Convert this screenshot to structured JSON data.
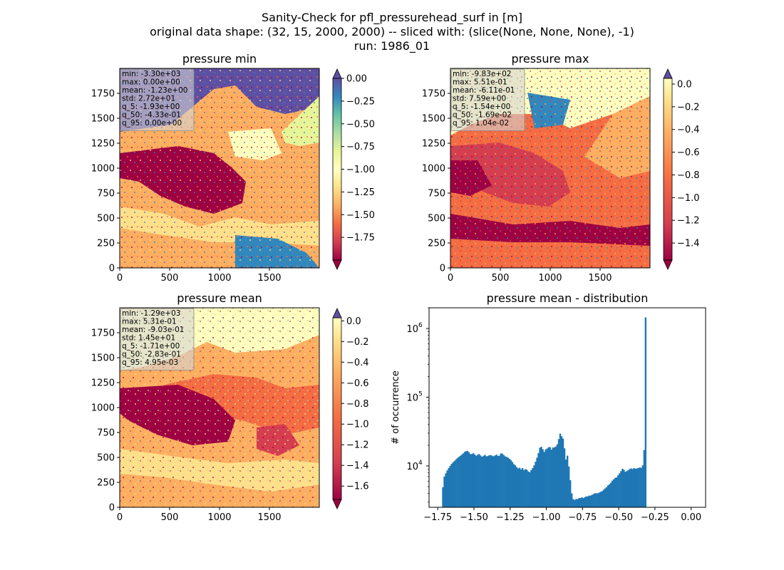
{
  "figure": {
    "title_lines": [
      "Sanity-Check for pfl_pressurehead_surf in [m]",
      "original data shape: (32, 15, 2000, 2000) -- sliced with: (slice(None, None, None), -1)",
      "run: 1986_01"
    ]
  },
  "chart_data": [
    {
      "type": "heatmap",
      "title": "pressure min",
      "xticks": [
        "0",
        "500",
        "1000",
        "1500"
      ],
      "yticks": [
        "0",
        "250",
        "500",
        "750",
        "1000",
        "1250",
        "1500",
        "1750"
      ],
      "xlim": [
        0,
        2000
      ],
      "ylim": [
        0,
        2000
      ],
      "colormap": "Spectral",
      "colorbar": {
        "range": [
          -2.0,
          0.0
        ],
        "ticks": [
          0.0,
          -0.25,
          -0.5,
          -0.75,
          -1.0,
          -1.25,
          -1.5,
          -1.75
        ],
        "tick_labels": [
          "0.00",
          "−0.25",
          "−0.50",
          "−0.75",
          "−1.00",
          "−1.25",
          "−1.50",
          "−1.75"
        ],
        "extend": "both",
        "over_color": "#5e4fa2",
        "under_color": "#9e0142"
      },
      "stats": [
        "min: -3.30e+03",
        "max: 0.00e+00",
        "mean: -1.23e+00",
        "std: 2.72e+01",
        "q_5: -1.93e+00",
        "q_50: -4.33e-01",
        "q_95: 0.00e+00"
      ]
    },
    {
      "type": "heatmap",
      "title": "pressure max",
      "xticks": [
        "0",
        "500",
        "1000",
        "1500"
      ],
      "yticks": [
        "0",
        "250",
        "500",
        "750",
        "1000",
        "1250",
        "1500",
        "1750"
      ],
      "xlim": [
        0,
        2000
      ],
      "ylim": [
        0,
        2000
      ],
      "colormap": "Spectral",
      "colorbar": {
        "range": [
          -1.55,
          0.05
        ],
        "ticks": [
          0.0,
          -0.2,
          -0.4,
          -0.6,
          -0.8,
          -1.0,
          -1.2,
          -1.4
        ],
        "tick_labels": [
          "0.0",
          "−0.2",
          "−0.4",
          "−0.6",
          "−0.8",
          "−1.0",
          "−1.2",
          "−1.4"
        ],
        "extend": "both",
        "over_color": "#5e4fa2",
        "under_color": "#9e0142"
      },
      "stats": [
        "min: -9.83e+02",
        "max: 5.51e-01",
        "mean: -6.11e-01",
        "std: 7.59e+00",
        "q_5: -1.54e+00",
        "q_50: -1.69e-02",
        "q_95: 1.04e-02"
      ]
    },
    {
      "type": "heatmap",
      "title": "pressure mean",
      "xticks": [
        "0",
        "500",
        "1000",
        "1500"
      ],
      "yticks": [
        "0",
        "250",
        "500",
        "750",
        "1000",
        "1250",
        "1500",
        "1750"
      ],
      "xlim": [
        0,
        2000
      ],
      "ylim": [
        0,
        2000
      ],
      "colormap": "Spectral",
      "colorbar": {
        "range": [
          -1.73,
          0.03
        ],
        "ticks": [
          0.0,
          -0.2,
          -0.4,
          -0.6,
          -0.8,
          -1.0,
          -1.2,
          -1.4,
          -1.6
        ],
        "tick_labels": [
          "0.0",
          "−0.2",
          "−0.4",
          "−0.6",
          "−0.8",
          "−1.0",
          "−1.2",
          "−1.4",
          "−1.6"
        ],
        "extend": "both",
        "over_color": "#5e4fa2",
        "under_color": "#9e0142"
      },
      "stats": [
        "min: -1.29e+03",
        "max: 5.31e-01",
        "mean: -9.03e-01",
        "std: 1.45e+01",
        "q_5: -1.71e+00",
        "q_50: -2.83e-01",
        "q_95: 4.95e-03"
      ]
    },
    {
      "type": "bar",
      "title": "pressure mean - distribution",
      "ylabel": "# of occurrence",
      "xlabel": "",
      "yscale": "log",
      "xlim": [
        -1.81,
        0.1
      ],
      "ylim": [
        2500,
        2000000
      ],
      "xticks": [
        -1.75,
        -1.5,
        -1.25,
        -1.0,
        -0.75,
        -0.5,
        -0.25,
        0.0
      ],
      "xtick_labels": [
        "−1.75",
        "−1.50",
        "−1.25",
        "−1.00",
        "−0.75",
        "−0.50",
        "−0.25",
        "0.00"
      ],
      "yticks": [
        10000,
        100000,
        1000000
      ],
      "ytick_labels": [
        "10",
        "10",
        "10"
      ],
      "ytick_exponents": [
        "4",
        "5",
        "6"
      ],
      "color": "#1f77b4",
      "bin_width": 0.01,
      "bin_start": -1.72,
      "counts": [
        4900,
        7000,
        7800,
        8600,
        9300,
        10000,
        10700,
        11300,
        11800,
        12400,
        13000,
        13500,
        14000,
        14600,
        15200,
        16000,
        16400,
        16500,
        15800,
        14900,
        14900,
        15300,
        14700,
        14100,
        14500,
        14900,
        14200,
        13600,
        14000,
        14500,
        13800,
        13900,
        14300,
        14400,
        14100,
        13800,
        14200,
        14600,
        14000,
        14100,
        15200,
        15100,
        14400,
        13800,
        13500,
        13200,
        12700,
        12100,
        11400,
        10600,
        10200,
        9600,
        9200,
        9400,
        8900,
        9300,
        8700,
        9000,
        8800,
        8300,
        8100,
        8700,
        9300,
        10200,
        11500,
        13200,
        15400,
        18400,
        19000,
        17500,
        16000,
        17400,
        17900,
        18700,
        18800,
        17300,
        18500,
        18600,
        19200,
        20600,
        24600,
        29500,
        27000,
        25000,
        18000,
        12400,
        14100,
        9800,
        6200,
        4000,
        3300,
        3200,
        3300,
        3300,
        3400,
        3400,
        3500,
        3400,
        3500,
        3600,
        3600,
        3700,
        3700,
        3800,
        3900,
        4000,
        4000,
        4000,
        4100,
        4200,
        4300,
        4500,
        4700,
        4900,
        5200,
        5400,
        5700,
        6100,
        6400,
        6700,
        6800,
        7300,
        7800,
        8400,
        9100,
        8800,
        8200,
        8400,
        8700,
        9000,
        9200,
        9000,
        9300,
        9100,
        9200,
        9300,
        9500,
        9400,
        10200,
        17000,
        1450000
      ]
    }
  ]
}
